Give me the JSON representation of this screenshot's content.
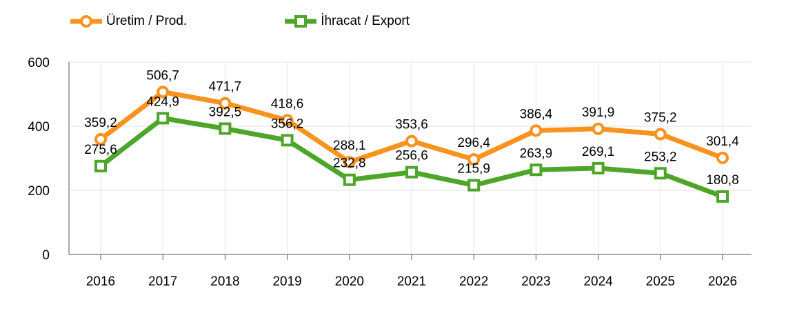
{
  "chart_data": {
    "type": "line",
    "title": "",
    "xlabel": "",
    "ylabel": "",
    "x": [
      "2016",
      "2017",
      "2018",
      "2019",
      "2020",
      "2021",
      "2022",
      "2023",
      "2024",
      "2025",
      "2026"
    ],
    "ylim": [
      0,
      600
    ],
    "yticks": [
      "0",
      "200",
      "400",
      "600"
    ],
    "grid": true,
    "legend_position": "top-left",
    "series": [
      {
        "name": "Üretim / Prod.",
        "color": "#F7931E",
        "marker": "circle",
        "values": [
          359.2,
          506.7,
          471.7,
          418.6,
          288.1,
          353.6,
          296.4,
          386.4,
          391.9,
          375.2,
          301.4
        ],
        "labels": [
          "359,2",
          "506,7",
          "471,7",
          "418,6",
          "288,1",
          "353,6",
          "296,4",
          "386,4",
          "391,9",
          "375,2",
          "301,4"
        ]
      },
      {
        "name": "İhracat / Export",
        "color": "#4DA52A",
        "marker": "square",
        "values": [
          275.6,
          424.9,
          392.5,
          356.2,
          232.8,
          256.6,
          215.9,
          263.9,
          269.1,
          253.2,
          180.8
        ],
        "labels": [
          "275,6",
          "424,9",
          "392,5",
          "356,2",
          "232,8",
          "256,6",
          "215,9",
          "263,9",
          "269,1",
          "253,2",
          "180,8"
        ]
      }
    ]
  }
}
